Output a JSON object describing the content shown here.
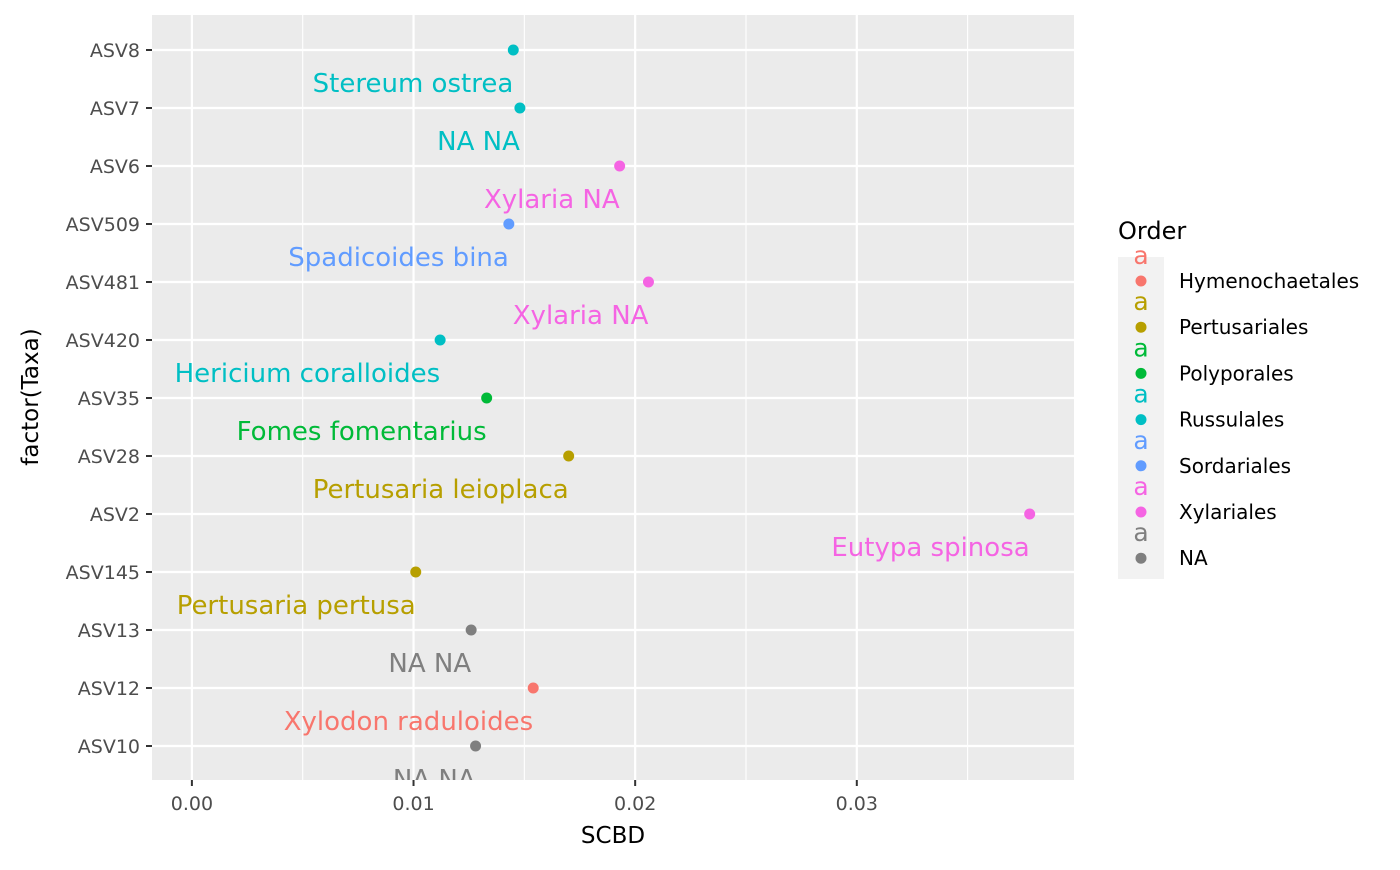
{
  "chart_data": {
    "type": "scatter",
    "xlabel": "SCBD",
    "ylabel": "factor(Taxa)",
    "xlim": [
      -0.0018,
      0.0398
    ],
    "x_ticks": [
      0.0,
      0.01,
      0.02,
      0.03
    ],
    "x_tick_labels": [
      "0.00",
      "0.01",
      "0.02",
      "0.03"
    ],
    "y_categories": [
      "ASV10",
      "ASV12",
      "ASV13",
      "ASV145",
      "ASV2",
      "ASV28",
      "ASV35",
      "ASV420",
      "ASV481",
      "ASV509",
      "ASV6",
      "ASV7",
      "ASV8"
    ],
    "grid": true,
    "legend": {
      "title": "Order",
      "position": "right",
      "key_glyph": "a",
      "entries": [
        {
          "name": "Hymenochaetales",
          "color": "#F8766D"
        },
        {
          "name": "Pertusariales",
          "color": "#B79F00"
        },
        {
          "name": "Polyporales",
          "color": "#00BA38"
        },
        {
          "name": "Russulales",
          "color": "#00BFC4"
        },
        {
          "name": "Sordariales",
          "color": "#619CFF"
        },
        {
          "name": "Xylariales",
          "color": "#F564E3"
        },
        {
          "name": "NA",
          "color": "#7F7F7F"
        }
      ]
    },
    "points": [
      {
        "taxa": "ASV8",
        "x": 0.0145,
        "order": "Russulales",
        "label": "Stereum ostrea"
      },
      {
        "taxa": "ASV7",
        "x": 0.0148,
        "order": "Russulales",
        "label": "NA NA"
      },
      {
        "taxa": "ASV6",
        "x": 0.0193,
        "order": "Xylariales",
        "label": "Xylaria NA"
      },
      {
        "taxa": "ASV509",
        "x": 0.0143,
        "order": "Sordariales",
        "label": "Spadicoides bina"
      },
      {
        "taxa": "ASV481",
        "x": 0.0206,
        "order": "Xylariales",
        "label": "Xylaria NA"
      },
      {
        "taxa": "ASV420",
        "x": 0.0112,
        "order": "Russulales",
        "label": "Hericium coralloides"
      },
      {
        "taxa": "ASV35",
        "x": 0.0133,
        "order": "Polyporales",
        "label": "Fomes fomentarius"
      },
      {
        "taxa": "ASV28",
        "x": 0.017,
        "order": "Pertusariales",
        "label": "Pertusaria leioplaca"
      },
      {
        "taxa": "ASV2",
        "x": 0.0378,
        "order": "Xylariales",
        "label": "Eutypa spinosa"
      },
      {
        "taxa": "ASV145",
        "x": 0.0101,
        "order": "Pertusariales",
        "label": "Pertusaria pertusa"
      },
      {
        "taxa": "ASV13",
        "x": 0.0126,
        "order": "NA",
        "label": "NA NA"
      },
      {
        "taxa": "ASV12",
        "x": 0.0154,
        "order": "Hymenochaetales",
        "label": "Xylodon raduloides"
      },
      {
        "taxa": "ASV10",
        "x": 0.0128,
        "order": "NA",
        "label": "NA NA"
      }
    ]
  }
}
